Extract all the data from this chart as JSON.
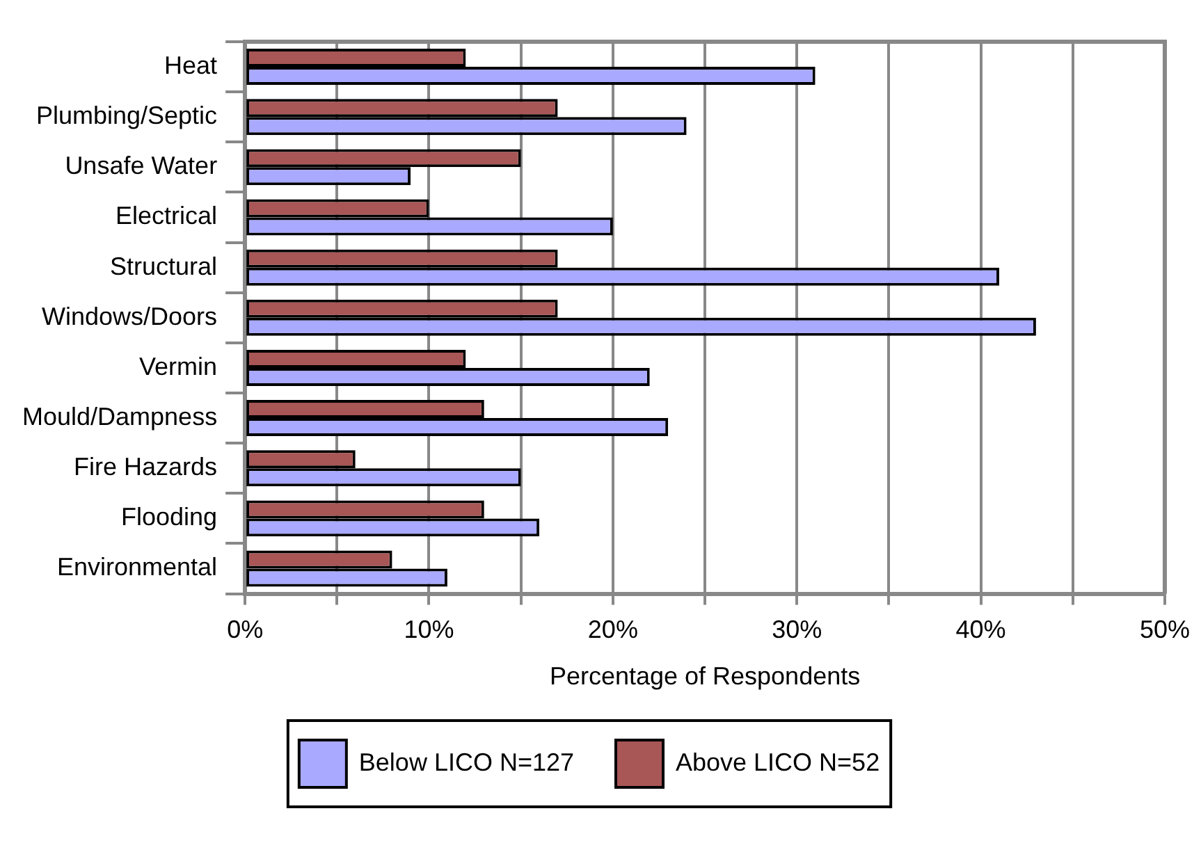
{
  "chart_data": {
    "type": "bar",
    "orientation": "horizontal",
    "xlabel": "Percentage of Respondents",
    "categories": [
      "Heat",
      "Plumbing/Septic",
      "Unsafe Water",
      "Electrical",
      "Structural",
      "Windows/Doors",
      "Vermin",
      "Mould/Dampness",
      "Fire Hazards",
      "Flooding",
      "Environmental"
    ],
    "series": [
      {
        "name": "Below LICO N=127",
        "color": "#a9a9ff",
        "values": [
          31,
          24,
          9,
          20,
          41,
          43,
          22,
          23,
          15,
          16,
          11
        ]
      },
      {
        "name": "Above LICO N=52",
        "color": "#a85656",
        "values": [
          12,
          17,
          15,
          10,
          17,
          17,
          12,
          13,
          6,
          13,
          8
        ]
      }
    ],
    "xlim": [
      0,
      50
    ],
    "xticks": [
      {
        "value": 0,
        "label": "0%"
      },
      {
        "value": 5,
        "label": null
      },
      {
        "value": 10,
        "label": "10%"
      },
      {
        "value": 15,
        "label": null
      },
      {
        "value": 20,
        "label": "20%"
      },
      {
        "value": 25,
        "label": null
      },
      {
        "value": 30,
        "label": "30%"
      },
      {
        "value": 35,
        "label": null
      },
      {
        "value": 40,
        "label": "40%"
      },
      {
        "value": 45,
        "label": null
      },
      {
        "value": 50,
        "label": "50%"
      }
    ],
    "grid": "x",
    "legend": "bottom"
  }
}
